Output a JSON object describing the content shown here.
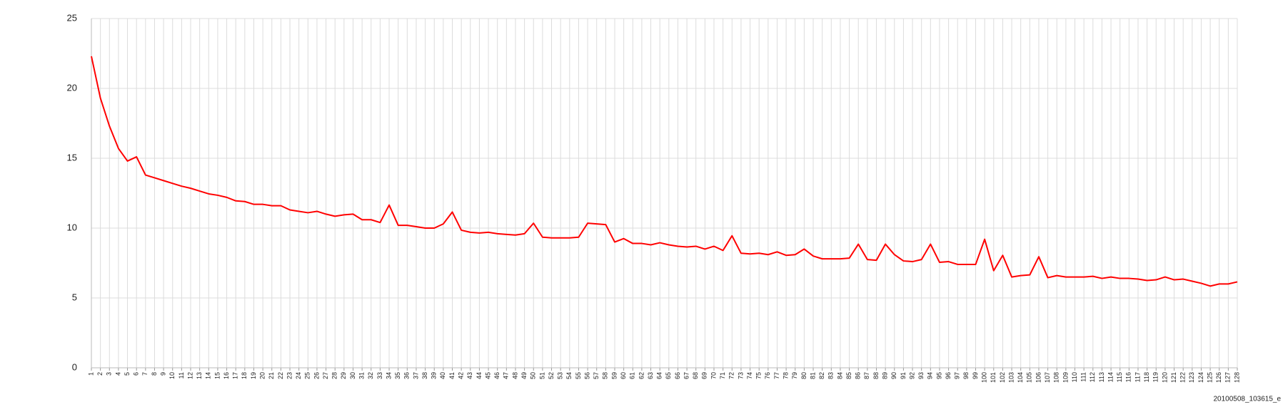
{
  "chart_data": {
    "type": "line",
    "categories": [
      "1",
      "2",
      "3",
      "4",
      "5",
      "6",
      "7",
      "8",
      "9",
      "10",
      "11",
      "12",
      "13",
      "14",
      "15",
      "16",
      "17",
      "18",
      "19",
      "20",
      "21",
      "22",
      "23",
      "24",
      "25",
      "26",
      "27",
      "28",
      "29",
      "30",
      "31",
      "32",
      "33",
      "34",
      "35",
      "36",
      "37",
      "38",
      "39",
      "40",
      "41",
      "42",
      "43",
      "44",
      "45",
      "46",
      "47",
      "48",
      "49",
      "50",
      "51",
      "52",
      "53",
      "54",
      "55",
      "56",
      "57",
      "58",
      "59",
      "60",
      "61",
      "62",
      "63",
      "64",
      "65",
      "66",
      "67",
      "68",
      "69",
      "70",
      "71",
      "72",
      "73",
      "74",
      "75",
      "76",
      "77",
      "78",
      "79",
      "80",
      "81",
      "82",
      "83",
      "84",
      "85",
      "86",
      "87",
      "88",
      "89",
      "90",
      "91",
      "92",
      "93",
      "94",
      "95",
      "96",
      "97",
      "98",
      "99",
      "100",
      "101",
      "102",
      "103",
      "104",
      "105",
      "106",
      "107",
      "108",
      "109",
      "110",
      "111",
      "112",
      "113",
      "114",
      "115",
      "116",
      "117",
      "118",
      "119",
      "120",
      "121",
      "122",
      "123",
      "124",
      "125",
      "126",
      "127",
      "128"
    ],
    "values": [
      22.3,
      19.3,
      17.3,
      15.7,
      14.8,
      15.1,
      13.8,
      13.6,
      13.4,
      13.2,
      13.0,
      12.85,
      12.65,
      12.45,
      12.35,
      12.2,
      11.95,
      11.9,
      11.7,
      11.7,
      11.6,
      11.6,
      11.3,
      11.2,
      11.1,
      11.2,
      11.0,
      10.85,
      10.95,
      11.0,
      10.6,
      10.6,
      10.4,
      11.65,
      10.2,
      10.2,
      10.1,
      10.0,
      10.0,
      10.3,
      11.15,
      9.85,
      9.7,
      9.65,
      9.7,
      9.6,
      9.55,
      9.5,
      9.6,
      10.35,
      9.35,
      9.3,
      9.3,
      9.3,
      9.35,
      10.35,
      10.3,
      10.25,
      9.0,
      9.25,
      8.9,
      8.9,
      8.8,
      8.95,
      8.8,
      8.7,
      8.65,
      8.7,
      8.5,
      8.7,
      8.4,
      9.45,
      8.2,
      8.15,
      8.2,
      8.1,
      8.3,
      8.05,
      8.1,
      8.5,
      8.0,
      7.8,
      7.8,
      7.8,
      7.85,
      8.85,
      7.75,
      7.7,
      8.85,
      8.1,
      7.65,
      7.6,
      7.75,
      8.85,
      7.55,
      7.6,
      7.4,
      7.4,
      7.4,
      9.2,
      6.95,
      8.05,
      6.5,
      6.6,
      6.65,
      7.95,
      6.45,
      6.6,
      6.5,
      6.5,
      6.5,
      6.55,
      6.4,
      6.5,
      6.4,
      6.4,
      6.35,
      6.25,
      6.3,
      6.5,
      6.3,
      6.35,
      6.2,
      6.05,
      5.85,
      6.0,
      6.0,
      6.15
    ],
    "color": "#ff0000",
    "ylim": [
      0,
      25
    ],
    "yticks": [
      0,
      5,
      10,
      15,
      20,
      25
    ],
    "grid": true,
    "footer": "20100508_103615_e"
  }
}
